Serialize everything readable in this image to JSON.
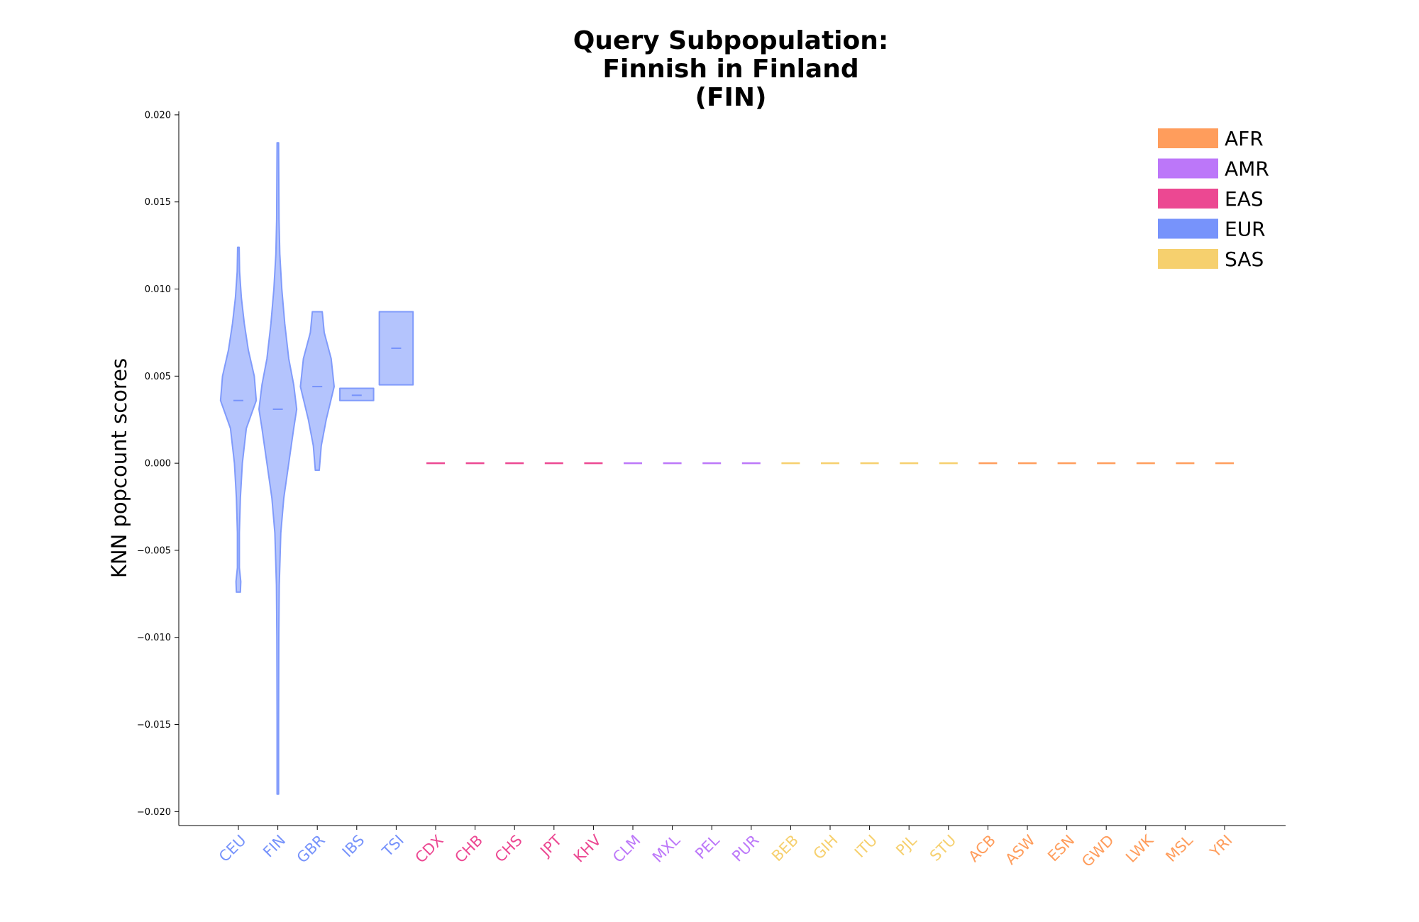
{
  "chart_data": {
    "type": "violin",
    "title": [
      "Query Subpopulation:",
      "Finnish in Finland",
      "(FIN)"
    ],
    "xlabel": "",
    "ylabel": "KNN popcount scores",
    "ylim": [
      -0.0208,
      0.0202
    ],
    "yticks": [
      0.02,
      0.015,
      0.01,
      0.005,
      0.0,
      -0.005,
      -0.01,
      -0.015,
      -0.02
    ],
    "ytick_labels": [
      "0.020",
      "0.015",
      "0.010",
      "0.005",
      "0.000",
      "−0.005",
      "−0.010",
      "−0.015",
      "−0.020"
    ],
    "grid": false,
    "legend_position": "top-right",
    "legend": [
      {
        "label": "AFR",
        "color": "#ff9d5c"
      },
      {
        "label": "AMR",
        "color": "#bc77f9"
      },
      {
        "label": "EAS",
        "color": "#ec4892"
      },
      {
        "label": "EUR",
        "color": "#7793fb"
      },
      {
        "label": "SAS",
        "color": "#f6d06e"
      }
    ],
    "superpop_colors": {
      "AFR": "#ff9d5c",
      "AMR": "#bc77f9",
      "EAS": "#ec4892",
      "EUR": "#7793fb",
      "SAS": "#f6d06e"
    },
    "categories": [
      {
        "name": "CEU",
        "superpop": "EUR",
        "min": -0.0074,
        "max": 0.0124,
        "median": 0.0036,
        "profile": [
          [
            -0.0074,
            0.1
          ],
          [
            -0.0068,
            0.12
          ],
          [
            -0.006,
            0.05
          ],
          [
            -0.004,
            0.05
          ],
          [
            -0.002,
            0.1
          ],
          [
            0.0,
            0.2
          ],
          [
            0.002,
            0.4
          ],
          [
            0.0036,
            0.9
          ],
          [
            0.005,
            0.8
          ],
          [
            0.0065,
            0.5
          ],
          [
            0.008,
            0.3
          ],
          [
            0.0095,
            0.15
          ],
          [
            0.011,
            0.06
          ],
          [
            0.0124,
            0.04
          ]
        ]
      },
      {
        "name": "FIN",
        "superpop": "EUR",
        "min": -0.019,
        "max": 0.0184,
        "median": 0.0031,
        "profile": [
          [
            -0.019,
            0.04
          ],
          [
            -0.015,
            0.04
          ],
          [
            -0.01,
            0.05
          ],
          [
            -0.007,
            0.07
          ],
          [
            -0.004,
            0.15
          ],
          [
            -0.002,
            0.3
          ],
          [
            0.0,
            0.55
          ],
          [
            0.002,
            0.8
          ],
          [
            0.0031,
            0.95
          ],
          [
            0.0045,
            0.8
          ],
          [
            0.006,
            0.55
          ],
          [
            0.008,
            0.35
          ],
          [
            0.01,
            0.2
          ],
          [
            0.012,
            0.1
          ],
          [
            0.014,
            0.06
          ],
          [
            0.0184,
            0.04
          ]
        ]
      },
      {
        "name": "GBR",
        "superpop": "EUR",
        "min": -0.0004,
        "max": 0.0087,
        "median": 0.0044,
        "profile": [
          [
            -0.0004,
            0.1
          ],
          [
            0.001,
            0.2
          ],
          [
            0.0025,
            0.45
          ],
          [
            0.0044,
            0.85
          ],
          [
            0.006,
            0.7
          ],
          [
            0.0075,
            0.35
          ],
          [
            0.0087,
            0.25
          ]
        ]
      },
      {
        "name": "IBS",
        "superpop": "EUR",
        "min": 0.0036,
        "max": 0.0043,
        "median": 0.0039,
        "profile": [
          [
            0.0036,
            0.85
          ],
          [
            0.0043,
            0.85
          ]
        ]
      },
      {
        "name": "TSI",
        "superpop": "EUR",
        "min": 0.0045,
        "max": 0.0087,
        "median": 0.0066,
        "profile": [
          [
            0.0045,
            0.85
          ],
          [
            0.0087,
            0.85
          ]
        ]
      },
      {
        "name": "CDX",
        "superpop": "EAS",
        "min": 0.0,
        "max": 0.0,
        "median": 0.0,
        "profile": []
      },
      {
        "name": "CHB",
        "superpop": "EAS",
        "min": 0.0,
        "max": 0.0,
        "median": 0.0,
        "profile": []
      },
      {
        "name": "CHS",
        "superpop": "EAS",
        "min": 0.0,
        "max": 0.0,
        "median": 0.0,
        "profile": []
      },
      {
        "name": "JPT",
        "superpop": "EAS",
        "min": 0.0,
        "max": 0.0,
        "median": 0.0,
        "profile": []
      },
      {
        "name": "KHV",
        "superpop": "EAS",
        "min": 0.0,
        "max": 0.0,
        "median": 0.0,
        "profile": []
      },
      {
        "name": "CLM",
        "superpop": "AMR",
        "min": 0.0,
        "max": 0.0,
        "median": 0.0,
        "profile": []
      },
      {
        "name": "MXL",
        "superpop": "AMR",
        "min": 0.0,
        "max": 0.0,
        "median": 0.0,
        "profile": []
      },
      {
        "name": "PEL",
        "superpop": "AMR",
        "min": 0.0,
        "max": 0.0,
        "median": 0.0,
        "profile": []
      },
      {
        "name": "PUR",
        "superpop": "AMR",
        "min": 0.0,
        "max": 0.0,
        "median": 0.0,
        "profile": []
      },
      {
        "name": "BEB",
        "superpop": "SAS",
        "min": 0.0,
        "max": 0.0,
        "median": 0.0,
        "profile": []
      },
      {
        "name": "GIH",
        "superpop": "SAS",
        "min": 0.0,
        "max": 0.0,
        "median": 0.0,
        "profile": []
      },
      {
        "name": "ITU",
        "superpop": "SAS",
        "min": 0.0,
        "max": 0.0,
        "median": 0.0,
        "profile": []
      },
      {
        "name": "PJL",
        "superpop": "SAS",
        "min": 0.0,
        "max": 0.0,
        "median": 0.0,
        "profile": []
      },
      {
        "name": "STU",
        "superpop": "SAS",
        "min": 0.0,
        "max": 0.0,
        "median": 0.0,
        "profile": []
      },
      {
        "name": "ACB",
        "superpop": "AFR",
        "min": 0.0,
        "max": 0.0,
        "median": 0.0,
        "profile": []
      },
      {
        "name": "ASW",
        "superpop": "AFR",
        "min": 0.0,
        "max": 0.0,
        "median": 0.0,
        "profile": []
      },
      {
        "name": "ESN",
        "superpop": "AFR",
        "min": 0.0,
        "max": 0.0,
        "median": 0.0,
        "profile": []
      },
      {
        "name": "GWD",
        "superpop": "AFR",
        "min": 0.0,
        "max": 0.0,
        "median": 0.0,
        "profile": []
      },
      {
        "name": "LWK",
        "superpop": "AFR",
        "min": 0.0,
        "max": 0.0,
        "median": 0.0,
        "profile": []
      },
      {
        "name": "MSL",
        "superpop": "AFR",
        "min": 0.0,
        "max": 0.0,
        "median": 0.0,
        "profile": []
      },
      {
        "name": "YRI",
        "superpop": "AFR",
        "min": 0.0,
        "max": 0.0,
        "median": 0.0,
        "profile": []
      }
    ]
  }
}
